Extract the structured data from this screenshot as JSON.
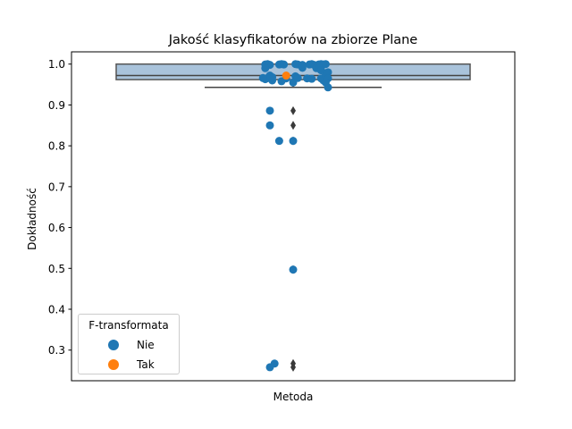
{
  "chart_data": {
    "type": "scatter",
    "title": "Jakość klasyfikatorów na zbiorze Plane",
    "xlabel": "Metoda",
    "ylabel": "Dokładność",
    "ylim": [
      0.225,
      1.03
    ],
    "yticks": [
      "0.3",
      "0.4",
      "0.5",
      "0.6",
      "0.7",
      "0.8",
      "0.9",
      "1.0"
    ],
    "grid": false,
    "legend": {
      "title": "F-transformata",
      "position": "lower-left",
      "entries": [
        {
          "name": "Nie",
          "color": "#1f77b4"
        },
        {
          "name": "Tak",
          "color": "#ff7f0e"
        }
      ]
    },
    "boxplot": {
      "q1": 0.962,
      "median": 0.972,
      "q3": 1.0,
      "whisker_low": 0.943,
      "whisker_high": 1.0,
      "color": "#a4c0d9",
      "outliers": [
        0.886,
        0.85,
        0.812,
        0.497,
        0.267,
        0.258
      ]
    },
    "series": [
      {
        "name": "Nie",
        "color": "#1f77b4",
        "points": [
          {
            "x": -0.1,
            "y": 0.998
          },
          {
            "x": -0.11,
            "y": 1.0
          },
          {
            "x": -0.12,
            "y": 0.999
          },
          {
            "x": -0.06,
            "y": 0.999
          },
          {
            "x": -0.05,
            "y": 1.0
          },
          {
            "x": -0.04,
            "y": 0.999
          },
          {
            "x": -0.12,
            "y": 0.99
          },
          {
            "x": -0.1,
            "y": 0.972
          },
          {
            "x": -0.09,
            "y": 0.968
          },
          {
            "x": -0.12,
            "y": 0.963
          },
          {
            "x": -0.11,
            "y": 0.966
          },
          {
            "x": -0.13,
            "y": 0.966
          },
          {
            "x": -0.09,
            "y": 0.96
          },
          {
            "x": -0.05,
            "y": 0.958
          },
          {
            "x": -0.03,
            "y": 0.965
          },
          {
            "x": 0.0,
            "y": 0.955
          },
          {
            "x": 0.01,
            "y": 0.97
          },
          {
            "x": 0.02,
            "y": 0.966
          },
          {
            "x": 0.01,
            "y": 1.0
          },
          {
            "x": 0.02,
            "y": 0.999
          },
          {
            "x": 0.04,
            "y": 0.998
          },
          {
            "x": 0.04,
            "y": 0.991
          },
          {
            "x": 0.06,
            "y": 0.965
          },
          {
            "x": 0.07,
            "y": 0.999
          },
          {
            "x": 0.08,
            "y": 1.0
          },
          {
            "x": 0.09,
            "y": 0.998
          },
          {
            "x": 0.1,
            "y": 0.99
          },
          {
            "x": 0.08,
            "y": 0.964
          },
          {
            "x": 0.11,
            "y": 0.999
          },
          {
            "x": 0.12,
            "y": 1.0
          },
          {
            "x": 0.13,
            "y": 0.999
          },
          {
            "x": 0.14,
            "y": 1.0
          },
          {
            "x": 0.12,
            "y": 0.985
          },
          {
            "x": 0.12,
            "y": 0.965
          },
          {
            "x": 0.13,
            "y": 0.96
          },
          {
            "x": 0.14,
            "y": 0.972
          },
          {
            "x": 0.15,
            "y": 0.98
          },
          {
            "x": 0.15,
            "y": 0.965
          },
          {
            "x": 0.14,
            "y": 0.955
          },
          {
            "x": 0.15,
            "y": 0.943
          },
          {
            "x": -0.1,
            "y": 0.886
          },
          {
            "x": -0.1,
            "y": 0.85
          },
          {
            "x": -0.06,
            "y": 0.812
          },
          {
            "x": 0.0,
            "y": 0.812
          },
          {
            "x": 0.0,
            "y": 0.497
          },
          {
            "x": -0.08,
            "y": 0.267
          },
          {
            "x": -0.1,
            "y": 0.258
          }
        ]
      },
      {
        "name": "Tak",
        "color": "#ff7f0e",
        "points": [
          {
            "x": -0.03,
            "y": 0.972
          }
        ]
      }
    ]
  }
}
